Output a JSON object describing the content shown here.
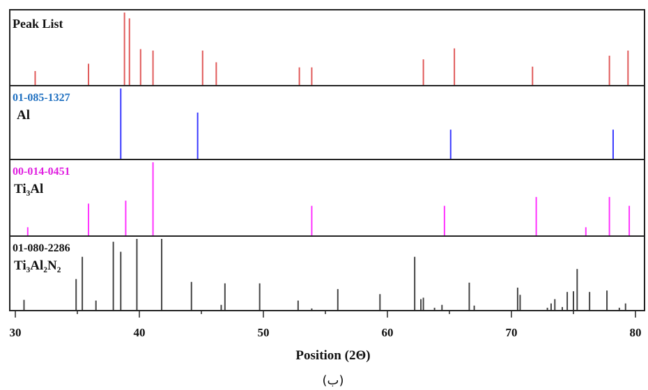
{
  "chart_data": {
    "type": "bar",
    "xlabel": "Position (2Θ)",
    "xlim": [
      30,
      80
    ],
    "xticks": [
      30,
      40,
      50,
      60,
      70,
      80
    ],
    "caption": "(ب)",
    "grid": false,
    "panels": [
      {
        "code": "",
        "phase": "Peak List",
        "color": "#e05a5a",
        "ymax": 100,
        "peaks": [
          {
            "x": 31.6,
            "y": 20
          },
          {
            "x": 35.9,
            "y": 30
          },
          {
            "x": 38.8,
            "y": 100
          },
          {
            "x": 39.2,
            "y": 92
          },
          {
            "x": 40.1,
            "y": 50
          },
          {
            "x": 41.1,
            "y": 48
          },
          {
            "x": 45.1,
            "y": 48
          },
          {
            "x": 46.2,
            "y": 32
          },
          {
            "x": 52.9,
            "y": 25
          },
          {
            "x": 53.9,
            "y": 25
          },
          {
            "x": 62.9,
            "y": 36
          },
          {
            "x": 65.4,
            "y": 51
          },
          {
            "x": 71.7,
            "y": 26
          },
          {
            "x": 77.9,
            "y": 41
          },
          {
            "x": 79.4,
            "y": 48
          }
        ]
      },
      {
        "code": "01-085-1327",
        "phase": "Al",
        "color": "#3a3aff",
        "code_color": "#1e6fc0",
        "ymax": 100,
        "peaks": [
          {
            "x": 38.5,
            "y": 100
          },
          {
            "x": 44.7,
            "y": 66
          },
          {
            "x": 65.1,
            "y": 42
          },
          {
            "x": 78.2,
            "y": 42
          }
        ]
      },
      {
        "code": "00-014-0451",
        "phase": "Ti₃Al",
        "color": "#ff33ff",
        "code_color": "#e020e0",
        "ymax": 100,
        "peaks": [
          {
            "x": 31.0,
            "y": 12
          },
          {
            "x": 35.9,
            "y": 44
          },
          {
            "x": 38.9,
            "y": 48
          },
          {
            "x": 41.1,
            "y": 100
          },
          {
            "x": 53.9,
            "y": 41
          },
          {
            "x": 64.6,
            "y": 41
          },
          {
            "x": 72.0,
            "y": 53
          },
          {
            "x": 76.0,
            "y": 12
          },
          {
            "x": 77.9,
            "y": 53
          },
          {
            "x": 79.5,
            "y": 41
          }
        ]
      },
      {
        "code": "01-080-2286",
        "phase": "Ti₃Al₂N₂",
        "color": "#444444",
        "code_color": "#111111",
        "ymax": 100,
        "peaks": [
          {
            "x": 30.7,
            "y": 15
          },
          {
            "x": 34.9,
            "y": 44
          },
          {
            "x": 35.4,
            "y": 75
          },
          {
            "x": 36.5,
            "y": 14
          },
          {
            "x": 37.9,
            "y": 96
          },
          {
            "x": 38.5,
            "y": 82
          },
          {
            "x": 39.8,
            "y": 100
          },
          {
            "x": 41.8,
            "y": 100
          },
          {
            "x": 44.2,
            "y": 40
          },
          {
            "x": 46.6,
            "y": 8
          },
          {
            "x": 46.9,
            "y": 38
          },
          {
            "x": 49.7,
            "y": 38
          },
          {
            "x": 52.8,
            "y": 14
          },
          {
            "x": 53.9,
            "y": 3
          },
          {
            "x": 56.0,
            "y": 30
          },
          {
            "x": 59.4,
            "y": 23
          },
          {
            "x": 62.2,
            "y": 75
          },
          {
            "x": 62.7,
            "y": 16
          },
          {
            "x": 62.9,
            "y": 18
          },
          {
            "x": 63.8,
            "y": 4
          },
          {
            "x": 64.4,
            "y": 8
          },
          {
            "x": 66.6,
            "y": 39
          },
          {
            "x": 67.0,
            "y": 7
          },
          {
            "x": 70.5,
            "y": 32
          },
          {
            "x": 70.7,
            "y": 22
          },
          {
            "x": 72.9,
            "y": 4
          },
          {
            "x": 73.2,
            "y": 10
          },
          {
            "x": 73.5,
            "y": 16
          },
          {
            "x": 74.1,
            "y": 5
          },
          {
            "x": 74.5,
            "y": 26
          },
          {
            "x": 75.0,
            "y": 27
          },
          {
            "x": 75.3,
            "y": 58
          },
          {
            "x": 76.3,
            "y": 26
          },
          {
            "x": 77.7,
            "y": 28
          },
          {
            "x": 78.7,
            "y": 4
          },
          {
            "x": 79.2,
            "y": 10
          }
        ]
      }
    ]
  }
}
